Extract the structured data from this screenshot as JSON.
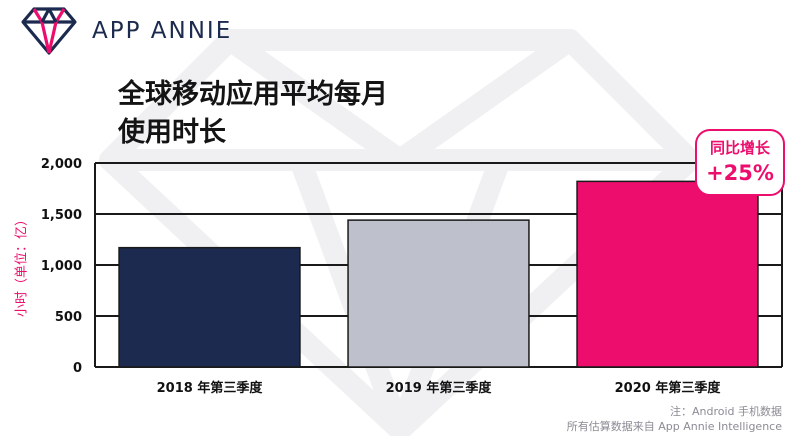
{
  "brand": {
    "name": "APP ANNIE",
    "logo_icon": "gem-icon",
    "colors": {
      "navy": "#1b2a4e",
      "pink": "#ec0d6d",
      "gray": "#bec1cc"
    }
  },
  "footnote": {
    "line1": "注：Android 手机数据",
    "line2": "所有估算数据来自 App Annie Intelligence"
  },
  "badge": {
    "label": "同比增长",
    "value": "+25%"
  },
  "chart_data": {
    "type": "bar",
    "title_lines": [
      "全球移动应用平均每月",
      "使用时长"
    ],
    "xlabel": "",
    "ylabel": "小时（单位：亿）",
    "ylim": [
      0,
      2000
    ],
    "yticks": [
      0,
      500,
      1000,
      1500,
      2000
    ],
    "ytick_labels": [
      "0",
      "500",
      "1,000",
      "1,500",
      "2,000"
    ],
    "categories": [
      "2018 年第三季度",
      "2019 年第三季度",
      "2020 年第三季度"
    ],
    "values": [
      1170,
      1440,
      1820
    ],
    "colors": [
      "#1b2a4e",
      "#bec1cc",
      "#ec0d6d"
    ],
    "grid": true,
    "legend": "none"
  }
}
